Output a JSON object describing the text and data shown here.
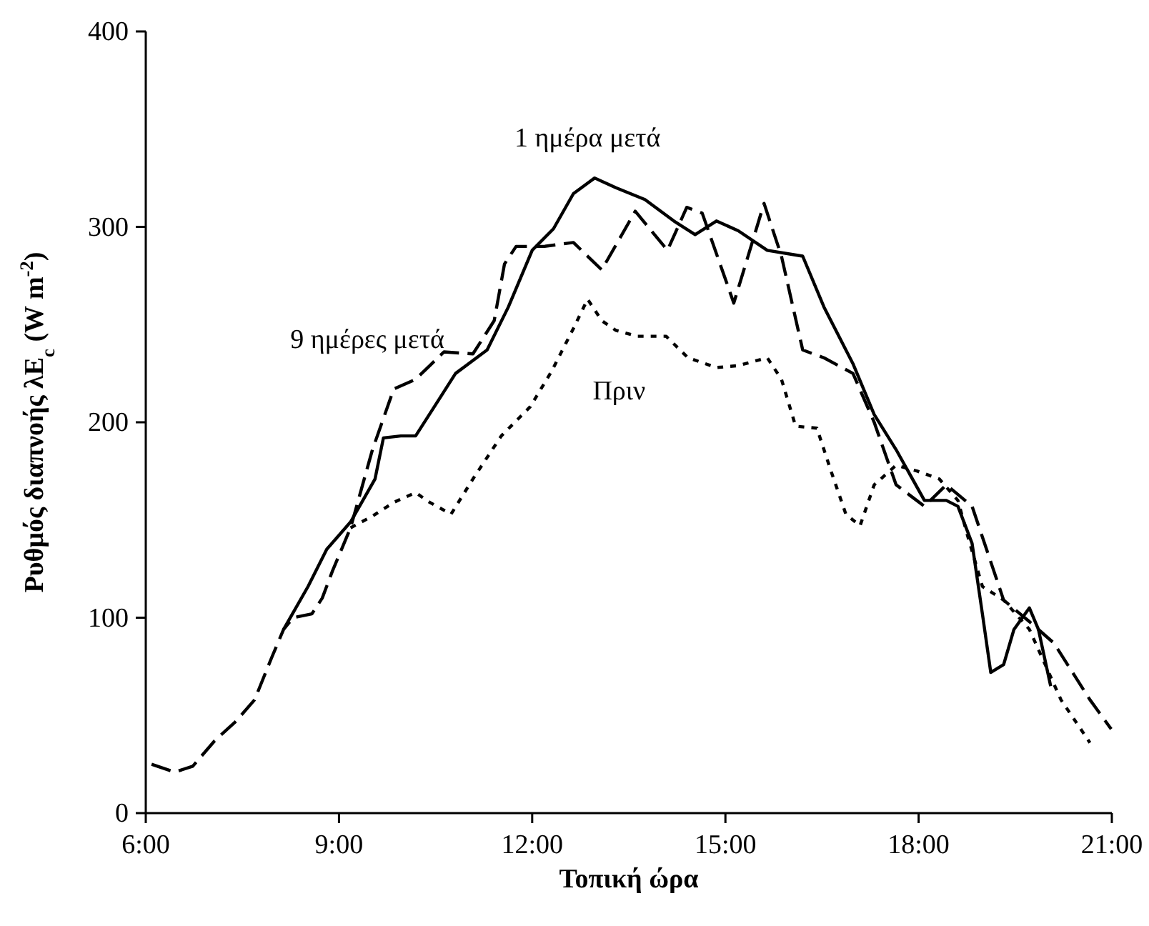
{
  "chart_data": {
    "type": "line",
    "xlabel": "Τοπική ώρα",
    "ylabel": "Ρυθμός διαπνοής λE$_{c}$  (W m$^{-2}$)",
    "xlim": [
      6,
      21
    ],
    "xticks": [
      {
        "value": 6,
        "label": "6:00"
      },
      {
        "value": 9,
        "label": "9:00"
      },
      {
        "value": 12,
        "label": "12:00"
      },
      {
        "value": 15,
        "label": "15:00"
      },
      {
        "value": 18,
        "label": "18:00"
      },
      {
        "value": 21,
        "label": "21:00"
      }
    ],
    "ylim": [
      0,
      400
    ],
    "yticks": [
      0,
      100,
      200,
      300,
      400
    ],
    "grid": false,
    "series": [
      {
        "name": "1 ημέρα μετά",
        "color": "#000000",
        "line_style": "solid",
        "x": [
          8.14,
          8.52,
          8.81,
          9.18,
          9.56,
          9.69,
          9.96,
          10.19,
          10.52,
          10.81,
          11.3,
          11.63,
          12.0,
          12.33,
          12.64,
          12.97,
          13.3,
          13.75,
          14.2,
          14.53,
          14.86,
          15.2,
          15.65,
          16.2,
          16.53,
          16.98,
          17.31,
          17.65,
          18.09,
          18.43,
          18.61,
          18.83,
          18.99,
          19.12,
          19.32,
          19.48,
          19.72,
          19.86,
          20.05
        ],
        "values": [
          94,
          116,
          135,
          149,
          171,
          192,
          193,
          193,
          210,
          225,
          237,
          259,
          288,
          299,
          317,
          325,
          320,
          314,
          303,
          296,
          303,
          298,
          288,
          285,
          259,
          230,
          204,
          186,
          160,
          160,
          157,
          138,
          102,
          72,
          76,
          94,
          105,
          94,
          65
        ]
      },
      {
        "name": "9 ημέρες μετά",
        "color": "#000000",
        "line_style": "dashed",
        "x": [
          6.09,
          6.45,
          6.73,
          7.07,
          7.4,
          7.69,
          7.96,
          8.14,
          8.29,
          8.58,
          8.74,
          8.9,
          9.18,
          9.52,
          9.85,
          10.19,
          10.63,
          11.08,
          11.41,
          11.57,
          11.75,
          12.19,
          12.64,
          13.08,
          13.6,
          14.1,
          14.4,
          14.64,
          15.13,
          15.6,
          15.87,
          16.2,
          16.53,
          16.98,
          17.31,
          17.65,
          18.09,
          18.43,
          18.83,
          19.32,
          19.72,
          20.1,
          20.66,
          20.99
        ],
        "values": [
          25,
          21,
          24,
          37,
          47,
          58,
          80,
          94,
          100,
          102,
          110,
          124,
          146,
          186,
          217,
          222,
          236,
          235,
          252,
          281,
          290,
          290,
          292,
          278,
          308,
          288,
          310,
          307,
          261,
          312,
          285,
          237,
          233,
          225,
          200,
          168,
          157,
          168,
          157,
          109,
          98,
          87,
          58,
          43
        ]
      },
      {
        "name": "Πριν",
        "color": "#000000",
        "line_style": "dotted",
        "x": [
          9.18,
          9.52,
          9.85,
          10.19,
          10.41,
          10.74,
          11.08,
          11.52,
          11.97,
          12.3,
          12.64,
          12.86,
          13.08,
          13.3,
          13.64,
          14.08,
          14.42,
          14.86,
          15.2,
          15.65,
          15.87,
          16.09,
          16.42,
          16.64,
          16.87,
          17.09,
          17.31,
          17.65,
          17.98,
          18.32,
          18.61,
          18.76,
          18.99,
          19.32,
          19.72,
          20.21,
          20.66
        ],
        "values": [
          146,
          152,
          159,
          164,
          159,
          153,
          171,
          193,
          208,
          226,
          248,
          263,
          252,
          247,
          244,
          244,
          233,
          228,
          229,
          233,
          222,
          198,
          197,
          175,
          153,
          147,
          168,
          178,
          175,
          171,
          160,
          142,
          116,
          109,
          94,
          58,
          36
        ]
      }
    ]
  }
}
